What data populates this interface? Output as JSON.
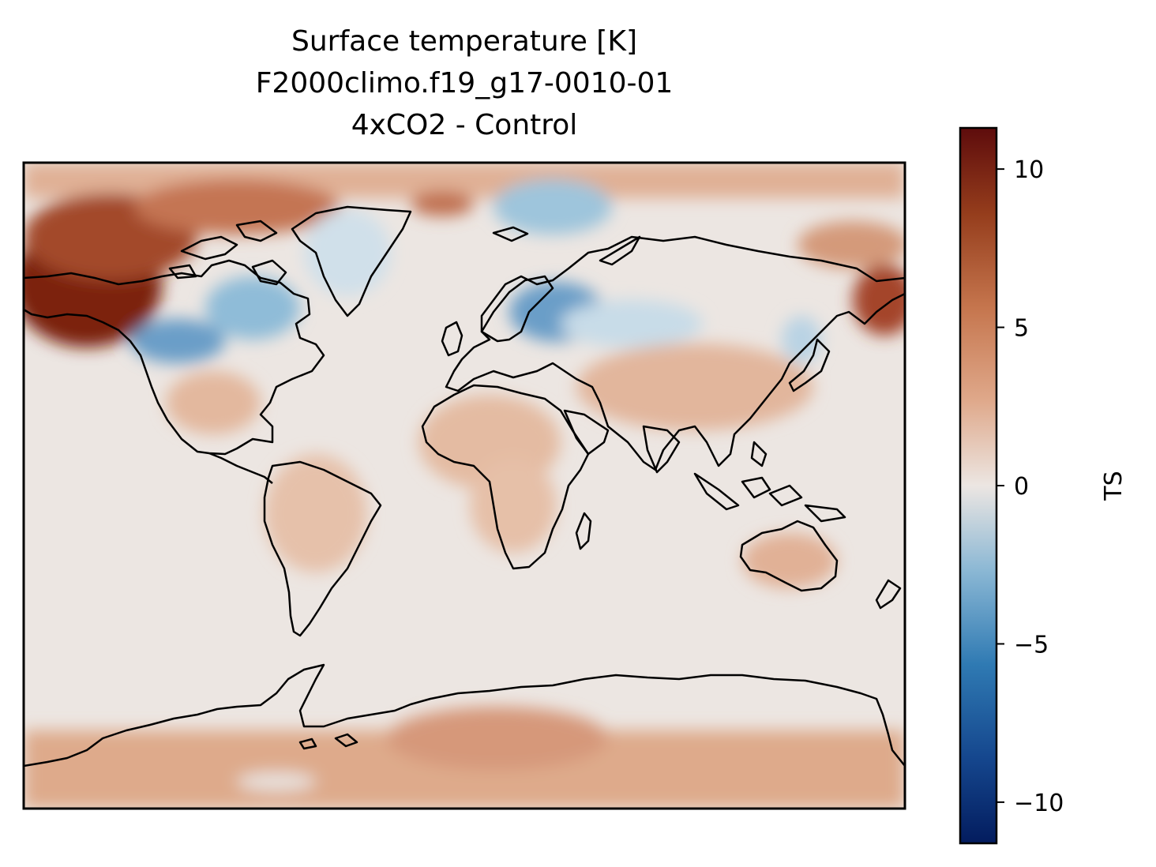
{
  "title": {
    "line1": "Surface temperature [K]",
    "line2": "F2000climo.f19_g17-0010-01",
    "line3": "4xCO2 - Control"
  },
  "colorbar": {
    "label": "TS",
    "vmin": -11.3,
    "vmax": 11.3,
    "ticks": [
      {
        "value": 10,
        "label": "10"
      },
      {
        "value": 5,
        "label": "5"
      },
      {
        "value": 0,
        "label": "0"
      },
      {
        "value": -5,
        "label": "−5"
      },
      {
        "value": -10,
        "label": "−10"
      }
    ],
    "colormap": "balance (blue-white-red)",
    "colors": {
      "low": "#031c5e",
      "mid_low": "#2f7ab3",
      "center": "#ece6e2",
      "mid_high": "#c5754d",
      "high": "#5e0c0c"
    }
  },
  "map": {
    "projection": "PlateCarree",
    "coastlines": true,
    "background_anomaly_color": "#ece6e2"
  }
}
